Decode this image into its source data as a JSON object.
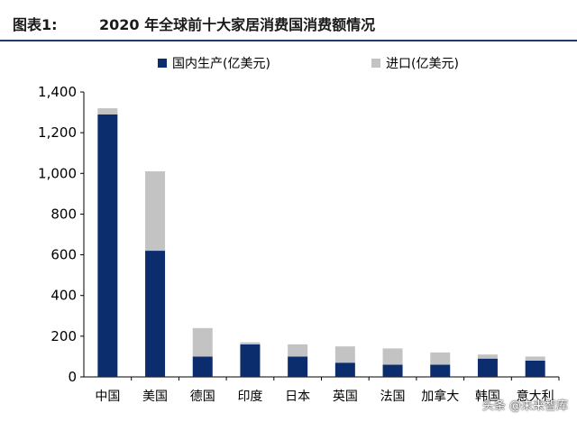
{
  "header": {
    "figure_label": "图表1:",
    "title": "2020 年全球前十大家居消费国消费额情况"
  },
  "legend": {
    "domestic": "国内生产(亿美元)",
    "imports": "进口(亿美元)"
  },
  "colors": {
    "domestic": "#0b2d6e",
    "imports": "#c3c3c3",
    "rule": "#1f3a68"
  },
  "watermark": "头条 @未来智库",
  "chart_data": {
    "type": "bar",
    "stacked": true,
    "title": "2020 年全球前十大家居消费国消费额情况",
    "categories": [
      "中国",
      "美国",
      "德国",
      "印度",
      "日本",
      "英国",
      "法国",
      "加拿大",
      "韩国",
      "意大利"
    ],
    "series": [
      {
        "name": "国内生产(亿美元)",
        "values": [
          1290,
          620,
          100,
          160,
          100,
          70,
          60,
          60,
          90,
          80
        ]
      },
      {
        "name": "进口(亿美元)",
        "values": [
          30,
          390,
          140,
          10,
          60,
          80,
          80,
          60,
          20,
          20
        ]
      }
    ],
    "ylim": [
      0,
      1400
    ],
    "yticks": [
      "0",
      "200",
      "400",
      "600",
      "800",
      "1,000",
      "1,200",
      "1,400"
    ],
    "grid": false,
    "legend_position": "top"
  }
}
